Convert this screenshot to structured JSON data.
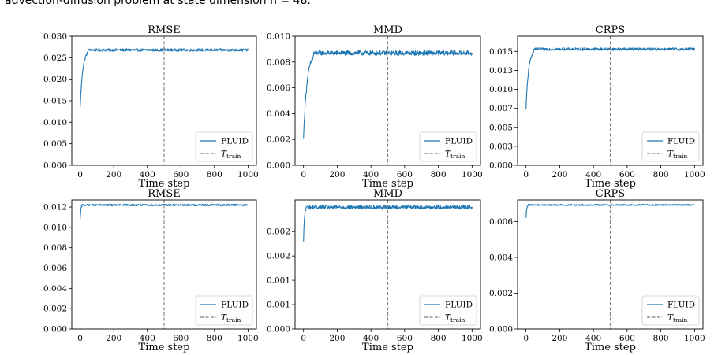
{
  "caption": "advection-diffusion problem at state dimension n = 48.",
  "colors": {
    "series": "#1f77b4",
    "train_line": "#7f7f7f"
  },
  "chart_data": [
    {
      "type": "line",
      "title": "RMSE",
      "xlabel": "Time step",
      "ylabel": "",
      "xlim": [
        0,
        1000
      ],
      "ylim": [
        0,
        0.03
      ],
      "xticks": [
        "0",
        "200",
        "400",
        "600",
        "800",
        "1000"
      ],
      "yticks": [
        "0.000",
        "0.005",
        "0.010",
        "0.015",
        "0.020",
        "0.025",
        "0.030"
      ],
      "start": 0.0135,
      "plateau": 0.0268,
      "noise": 0.0003,
      "rise_steps": 15,
      "vline": 500,
      "legend": {
        "series": "FLUID",
        "vline_main": "T",
        "vline_sub": "train",
        "position": "lower-right"
      }
    },
    {
      "type": "line",
      "title": "MMD",
      "xlabel": "Time step",
      "ylabel": "",
      "xlim": [
        0,
        1000
      ],
      "ylim": [
        0,
        0.01
      ],
      "xticks": [
        "0",
        "200",
        "400",
        "600",
        "800",
        "1000"
      ],
      "yticks": [
        "0.000",
        "0.002",
        "0.004",
        "0.006",
        "0.008",
        "0.010"
      ],
      "start": 0.0021,
      "plateau": 0.0087,
      "noise": 0.00018,
      "rise_steps": 20,
      "vline": 500,
      "legend": {
        "series": "FLUID",
        "vline_main": "T",
        "vline_sub": "train",
        "position": "lower-right"
      }
    },
    {
      "type": "line",
      "title": "CRPS",
      "xlabel": "Time step",
      "ylabel": "",
      "xlim": [
        0,
        1000
      ],
      "ylim": [
        0,
        0.017
      ],
      "xticks": [
        "0",
        "200",
        "400",
        "600",
        "800",
        "1000"
      ],
      "yticks": [
        "0.000",
        "0.003",
        "0.005",
        "0.007",
        "0.010",
        "0.013",
        "0.015"
      ],
      "ytick_values": [
        0.0,
        0.0025,
        0.005,
        0.0075,
        0.01,
        0.0125,
        0.015
      ],
      "start": 0.0074,
      "plateau": 0.0153,
      "noise": 0.00018,
      "rise_steps": 15,
      "vline": 500,
      "legend": {
        "series": "FLUID",
        "vline_main": "T",
        "vline_sub": "train",
        "position": "lower-right"
      }
    },
    {
      "type": "line",
      "title": "RMSE",
      "xlabel": "Time step",
      "ylabel": "",
      "xlim": [
        0,
        1000
      ],
      "ylim": [
        0,
        0.0127
      ],
      "xticks": [
        "0",
        "200",
        "400",
        "600",
        "800",
        "1000"
      ],
      "yticks": [
        "0.000",
        "0.002",
        "0.004",
        "0.006",
        "0.008",
        "0.010",
        "0.012"
      ],
      "start": 0.0108,
      "plateau": 0.0122,
      "noise": 9e-05,
      "rise_steps": 4,
      "vline": 500,
      "legend": {
        "series": "FLUID",
        "vline_main": "T",
        "vline_sub": "train",
        "position": "lower-right"
      }
    },
    {
      "type": "line",
      "title": "MMD",
      "xlabel": "Time step",
      "ylabel": "",
      "xlim": [
        0,
        1000
      ],
      "ylim": [
        0,
        0.00265
      ],
      "xticks": [
        "0",
        "200",
        "400",
        "600",
        "800",
        "1000"
      ],
      "yticks": [
        "0.000",
        "0.001",
        "0.001",
        "0.002",
        "0.002"
      ],
      "ytick_values": [
        0.0,
        0.0005,
        0.001,
        0.0015,
        0.002
      ],
      "start": 0.0018,
      "plateau": 0.0025,
      "noise": 4e-05,
      "rise_steps": 5,
      "vline": 500,
      "legend": {
        "series": "FLUID",
        "vline_main": "T",
        "vline_sub": "train",
        "position": "lower-right"
      }
    },
    {
      "type": "line",
      "title": "CRPS",
      "xlabel": "Time step",
      "ylabel": "",
      "xlim": [
        0,
        1000
      ],
      "ylim": [
        0,
        0.0072
      ],
      "xticks": [
        "0",
        "200",
        "400",
        "600",
        "800",
        "1000"
      ],
      "yticks": [
        "0.000",
        "0.002",
        "0.004",
        "0.006"
      ],
      "start": 0.0062,
      "plateau": 0.00692,
      "noise": 4e-05,
      "rise_steps": 4,
      "vline": 500,
      "legend": {
        "series": "FLUID",
        "vline_main": "T",
        "vline_sub": "train",
        "position": "lower-right"
      }
    }
  ]
}
